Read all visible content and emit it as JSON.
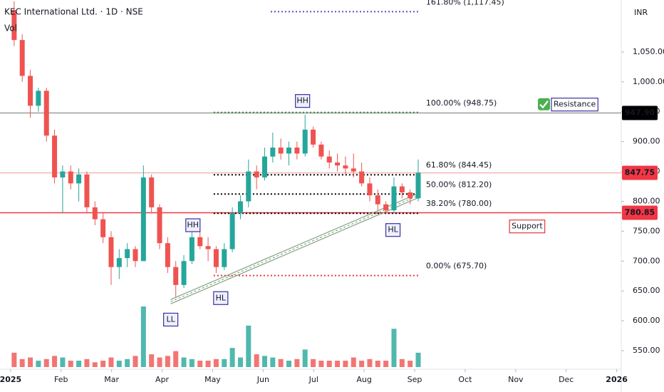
{
  "chart_data": {
    "type": "candlestick",
    "title": "KEC International Ltd. · 1D · NSE",
    "subtitle": "Vol",
    "currency": "INR",
    "x": [
      0.07,
      0.23,
      0.39,
      0.55,
      0.71,
      0.87,
      1.03,
      1.19,
      1.35,
      1.51,
      1.67,
      1.83,
      1.99,
      2.15,
      2.31,
      2.47,
      2.63,
      2.79,
      2.95,
      3.11,
      3.27,
      3.43,
      3.59,
      3.75,
      3.91,
      4.07,
      4.23,
      4.39,
      4.55,
      4.71,
      4.87,
      5.03,
      5.19,
      5.35,
      5.51,
      5.67,
      5.83,
      5.99,
      6.15,
      6.31,
      6.47,
      6.63,
      6.79,
      6.95,
      7.11,
      7.27,
      7.43,
      7.59,
      7.75,
      7.91,
      8.07
    ],
    "open": [
      1120,
      1070,
      1010,
      960,
      985,
      910,
      840,
      850,
      830,
      845,
      790,
      770,
      740,
      690,
      705,
      720,
      700,
      840,
      790,
      730,
      690,
      660,
      700,
      740,
      725,
      720,
      690,
      720,
      780,
      800,
      850,
      840,
      875,
      890,
      880,
      890,
      880,
      920,
      895,
      875,
      865,
      860,
      855,
      850,
      830,
      810,
      795,
      785,
      825,
      815,
      805
    ],
    "high": [
      1135,
      1080,
      1020,
      990,
      990,
      920,
      860,
      860,
      855,
      850,
      800,
      780,
      750,
      720,
      730,
      725,
      860,
      845,
      795,
      740,
      700,
      710,
      760,
      755,
      740,
      725,
      730,
      790,
      810,
      870,
      860,
      890,
      915,
      905,
      900,
      900,
      945,
      925,
      900,
      885,
      880,
      875,
      880,
      865,
      840,
      820,
      800,
      840,
      830,
      820,
      870
    ],
    "low": [
      1060,
      1000,
      940,
      950,
      900,
      830,
      780,
      820,
      800,
      780,
      760,
      730,
      660,
      670,
      690,
      690,
      700,
      780,
      720,
      680,
      640,
      655,
      695,
      720,
      700,
      680,
      685,
      715,
      770,
      790,
      820,
      835,
      865,
      870,
      860,
      870,
      875,
      890,
      870,
      855,
      850,
      845,
      840,
      825,
      800,
      785,
      778,
      780,
      805,
      795,
      800
    ],
    "close": [
      1070,
      1010,
      960,
      985,
      910,
      840,
      850,
      830,
      845,
      790,
      770,
      740,
      690,
      705,
      720,
      700,
      840,
      790,
      730,
      690,
      660,
      700,
      740,
      725,
      720,
      690,
      720,
      780,
      800,
      850,
      840,
      875,
      890,
      880,
      890,
      880,
      920,
      895,
      875,
      865,
      860,
      855,
      850,
      830,
      810,
      795,
      785,
      825,
      815,
      805,
      848
    ],
    "volume": [
      0.9,
      0.5,
      0.6,
      0.4,
      0.5,
      0.7,
      0.6,
      0.4,
      0.4,
      0.5,
      0.3,
      0.4,
      0.6,
      0.4,
      0.5,
      0.7,
      3.8,
      0.8,
      0.6,
      0.7,
      1.0,
      0.6,
      0.5,
      0.4,
      0.4,
      0.5,
      0.5,
      1.2,
      0.6,
      2.6,
      0.8,
      0.7,
      0.6,
      0.5,
      0.4,
      0.5,
      1.1,
      0.5,
      0.4,
      0.4,
      0.4,
      0.4,
      0.6,
      0.4,
      0.5,
      0.4,
      0.4,
      2.4,
      0.5,
      0.4,
      0.9
    ],
    "up_color": "#26a69a",
    "down_color": "#ef5350",
    "xlim": [
      -0.21,
      12.09
    ],
    "xticks": [
      {
        "value": 0,
        "label": "2025"
      },
      {
        "value": 1,
        "label": "Feb"
      },
      {
        "value": 2,
        "label": "Mar"
      },
      {
        "value": 3,
        "label": "Apr"
      },
      {
        "value": 4,
        "label": "May"
      },
      {
        "value": 5,
        "label": "Jun"
      },
      {
        "value": 6,
        "label": "Jul"
      },
      {
        "value": 7,
        "label": "Aug"
      },
      {
        "value": 8,
        "label": "Sep"
      },
      {
        "value": 9,
        "label": "Oct"
      },
      {
        "value": 10,
        "label": "Nov"
      },
      {
        "value": 11,
        "label": "Dec"
      },
      {
        "value": 12,
        "label": "2026"
      }
    ],
    "ylim": [
      522.6,
      1137
    ],
    "yticks": [
      {
        "value": 550,
        "label": "550.00"
      },
      {
        "value": 600,
        "label": "600.00"
      },
      {
        "value": 650,
        "label": "650.00"
      },
      {
        "value": 700,
        "label": "700.00"
      },
      {
        "value": 750,
        "label": "750.00"
      },
      {
        "value": 800,
        "label": "800.00"
      },
      {
        "value": 850,
        "label": "850.00"
      },
      {
        "value": 900,
        "label": "900.00"
      },
      {
        "value": 950,
        "label": "950.00"
      },
      {
        "value": 1000,
        "label": "1,000.00"
      },
      {
        "value": 1050,
        "label": "1,050.00"
      }
    ],
    "price_lines": [
      {
        "value": 947.9,
        "label": "947.90",
        "color": "#9e9e9e",
        "tag": "#000000"
      },
      {
        "value": 847.75,
        "label": "847.75",
        "color": "#f4b6b6",
        "tag": "#f23645"
      },
      {
        "value": 780.85,
        "label": "780.85",
        "color": "#f23645",
        "tag": "#f23645"
      }
    ],
    "fib_levels": [
      {
        "value": 1117.45,
        "label": "161.80% (1,117.45)",
        "color": "#5b4fc4",
        "x": [
          5.15,
          8.11
        ]
      },
      {
        "value": 948.75,
        "label": "100.00% (948.75)",
        "color": "#2e8b3a",
        "x": [
          4.02,
          8.11
        ]
      },
      {
        "value": 844.45,
        "label": "61.80% (844.45)",
        "color": "#000000",
        "x": [
          4.02,
          8.11
        ]
      },
      {
        "value": 812.2,
        "label": "50.00% (812.20)",
        "color": "#000000",
        "x": [
          4.02,
          8.11
        ]
      },
      {
        "value": 780,
        "label": "38.20% (780.00)",
        "color": "#000000",
        "x": [
          4.02,
          8.11
        ]
      },
      {
        "value": 675.7,
        "label": "0.00% (675.70)",
        "color": "#e53935",
        "x": [
          4.02,
          8.11
        ]
      }
    ],
    "trendline": {
      "x": [
        3.17,
        8.11
      ],
      "y": [
        632,
        811
      ]
    },
    "pattern_labels": [
      {
        "text": "HH",
        "x": 5.78,
        "y": 968
      },
      {
        "text": "HH",
        "x": 3.61,
        "y": 760
      },
      {
        "text": "HL",
        "x": 4.16,
        "y": 638
      },
      {
        "text": "LL",
        "x": 3.17,
        "y": 602
      },
      {
        "text": "HL",
        "x": 7.57,
        "y": 752
      }
    ],
    "notes": [
      {
        "text": "Resistance",
        "x": 10.75,
        "y": 962,
        "color": "#000000",
        "box": "#3b2f9e"
      },
      {
        "text": "Support",
        "x": 9.92,
        "y": 758,
        "color": "#e53935",
        "box": "#e53935"
      }
    ]
  }
}
